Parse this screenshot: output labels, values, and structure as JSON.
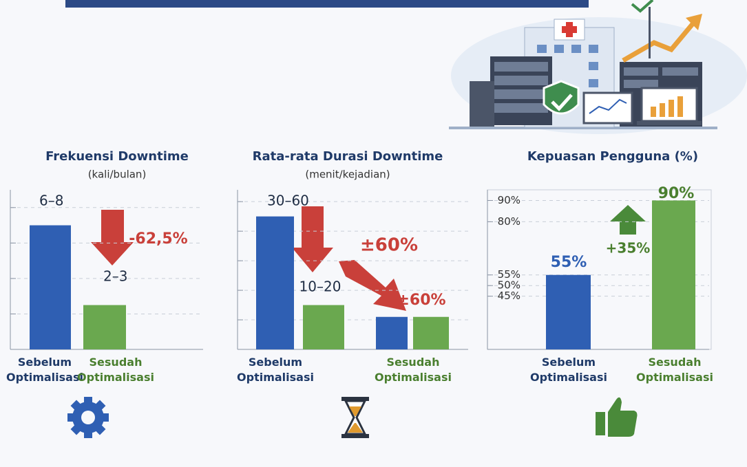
{
  "chart_data": [
    {
      "type": "bar",
      "title": "Frekuensi Downtime",
      "subtitle": "(kali/bulan)",
      "categories": [
        "Sebelum Optimalisasi",
        "Sesudah Optimalisasi"
      ],
      "values": [
        7,
        2.5
      ],
      "value_labels": [
        "6–8",
        "2–3"
      ],
      "colors": [
        "#2f5fb3",
        "#6aa84f"
      ],
      "ylim": [
        0,
        9
      ],
      "yticks": [
        2,
        4,
        6,
        8
      ],
      "annotations": [
        "-62,5%"
      ]
    },
    {
      "type": "grouped-bar",
      "title": "Rata-rata Durasi Downtime",
      "subtitle": "(menit/kejadian)",
      "categories": [
        "Sebelum Optimalisasi",
        "Sesudah Optimalisasi"
      ],
      "series": [
        {
          "color": "#2f5fb3",
          "values": [
            45,
            11
          ],
          "value_labels": [
            "30–60",
            null
          ]
        },
        {
          "color": "#6aa84f",
          "values": [
            15,
            11
          ],
          "value_labels": [
            "10–20",
            null
          ]
        }
      ],
      "ylim": [
        0,
        54
      ],
      "yticks": [
        10,
        20,
        30,
        40,
        50
      ],
      "annotations": [
        "±60%",
        "±60%"
      ]
    },
    {
      "type": "bar",
      "title": "Kepuasan Pengguna (%)",
      "categories": [
        "Sebelum Optimalisasi",
        "Sesudah Optimalisasi"
      ],
      "values": [
        55,
        90
      ],
      "value_labels": [
        "55%",
        "90%"
      ],
      "colors": [
        "#2f5fb3",
        "#6aa84f"
      ],
      "ylim": [
        20,
        95
      ],
      "yticks": [
        {
          "value": 90,
          "label": "90%"
        },
        {
          "value": 80,
          "label": "80%"
        },
        {
          "value": 55,
          "label": "55%"
        },
        {
          "value": 50,
          "label": "50%"
        },
        {
          "value": 45,
          "label": "45%"
        }
      ],
      "annotations": [
        "+35%"
      ]
    }
  ]
}
